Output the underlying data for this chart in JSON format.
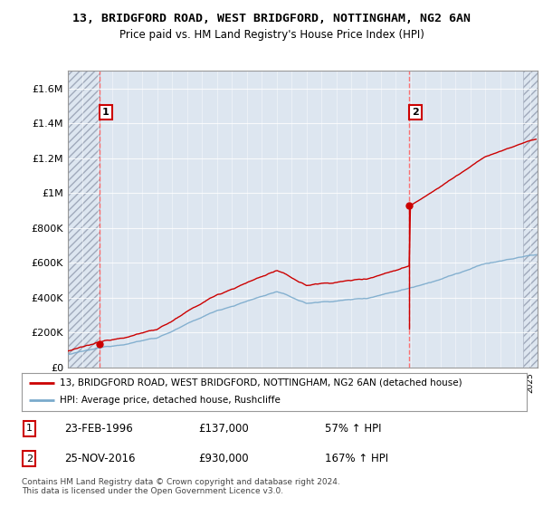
{
  "title": "13, BRIDGFORD ROAD, WEST BRIDGFORD, NOTTINGHAM, NG2 6AN",
  "subtitle": "Price paid vs. HM Land Registry's House Price Index (HPI)",
  "ylabel_ticks": [
    0,
    200000,
    400000,
    600000,
    800000,
    1000000,
    1200000,
    1400000,
    1600000
  ],
  "ylabel_labels": [
    "£0",
    "£200K",
    "£400K",
    "£600K",
    "£800K",
    "£1M",
    "£1.2M",
    "£1.4M",
    "£1.6M"
  ],
  "ylim": [
    0,
    1700000
  ],
  "xlim_start": 1994.0,
  "xlim_end": 2025.5,
  "transaction1_x": 1996.15,
  "transaction1_y": 137000,
  "transaction2_x": 2016.9,
  "transaction2_y": 930000,
  "hatch_left_end": 1996.15,
  "hatch_right_start": 2024.5,
  "plot_bg_color": "#dde6f0",
  "hatch_color": "#c0ccd8",
  "legend_line1": "13, BRIDGFORD ROAD, WEST BRIDGFORD, NOTTINGHAM, NG2 6AN (detached house)",
  "legend_line2": "HPI: Average price, detached house, Rushcliffe",
  "note1_num": "1",
  "note1_date": "23-FEB-1996",
  "note1_price": "£137,000",
  "note1_hpi": "57% ↑ HPI",
  "note2_num": "2",
  "note2_date": "25-NOV-2016",
  "note2_price": "£930,000",
  "note2_hpi": "167% ↑ HPI",
  "footer": "Contains HM Land Registry data © Crown copyright and database right 2024.\nThis data is licensed under the Open Government Licence v3.0.",
  "red_line_color": "#cc0000",
  "blue_line_color": "#7aaacc",
  "dashed_line_color": "#ff6666"
}
